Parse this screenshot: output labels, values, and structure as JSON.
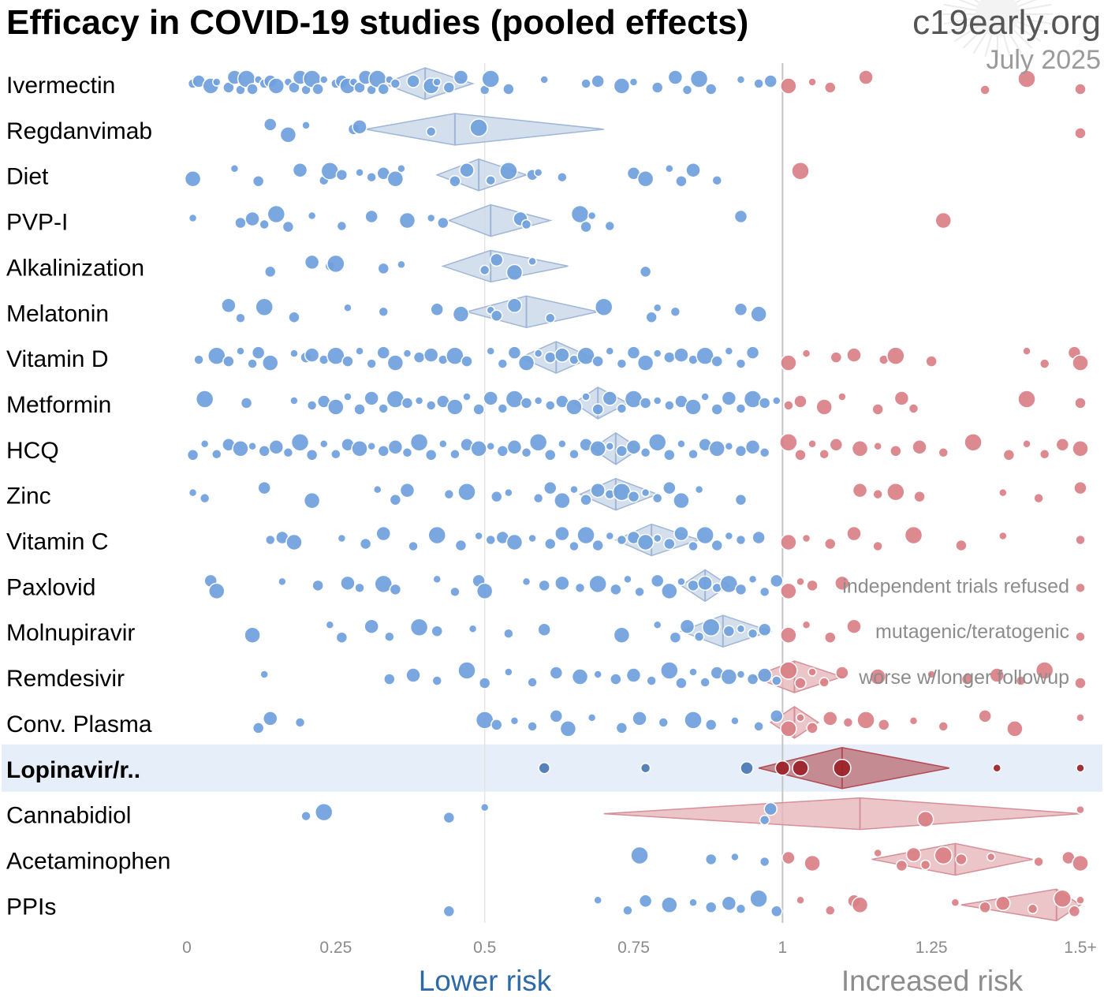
{
  "title": "Efficacy in COVID-19 studies (pooled effects)",
  "brand": "c19early.org",
  "date": "July 2025",
  "colors": {
    "lower": "#6f9fdc",
    "higher": "#d97f86",
    "pool_lower": "#c9d7ea",
    "pool_higher": "#e7b6bc",
    "highlight_bg": "#e6eef9",
    "highlight_lower": "#4a78b3",
    "highlight_higher": "#9b2128",
    "lower_label": "#2e6aa6",
    "higher_label": "#8c8c8c"
  },
  "chart_data": {
    "type": "scatter",
    "xlim": [
      0,
      1.5
    ],
    "x_ticks": [
      {
        "value": 0,
        "label": "0"
      },
      {
        "value": 0.25,
        "label": "0.25"
      },
      {
        "value": 0.5,
        "label": "0.5"
      },
      {
        "value": 0.75,
        "label": "0.75"
      },
      {
        "value": 1,
        "label": "1"
      },
      {
        "value": 1.25,
        "label": "1.25"
      },
      {
        "value": 1.5,
        "label": "1.5+"
      }
    ],
    "x_direction_labels": {
      "lower": "Lower risk",
      "higher": "Increased risk"
    },
    "highlight": "Lopinavir/r..",
    "rows": [
      {
        "name": "Ivermectin",
        "pooled": {
          "est": 0.4,
          "lo": 0.33,
          "hi": 0.48
        },
        "points": [
          0.01,
          0.02,
          0.04,
          0.05,
          0.07,
          0.08,
          0.09,
          0.1,
          0.11,
          0.12,
          0.13,
          0.14,
          0.15,
          0.17,
          0.18,
          0.19,
          0.2,
          0.21,
          0.22,
          0.23,
          0.25,
          0.26,
          0.27,
          0.28,
          0.29,
          0.3,
          0.31,
          0.32,
          0.33,
          0.34,
          0.35,
          0.38,
          0.41,
          0.42,
          0.44,
          0.46,
          0.5,
          0.51,
          0.54,
          0.6,
          0.67,
          0.69,
          0.73,
          0.75,
          0.79,
          0.82,
          0.84,
          0.86,
          0.88,
          0.93,
          0.96,
          0.98,
          1.01,
          1.05,
          1.08,
          1.14,
          1.34,
          1.41,
          1.5
        ],
        "note": ""
      },
      {
        "name": "Regdanvimab",
        "pooled": {
          "est": 0.45,
          "lo": 0.3,
          "hi": 0.7
        },
        "points": [
          0.14,
          0.17,
          0.2,
          0.28,
          0.29,
          0.41,
          0.49,
          1.5
        ],
        "note": ""
      },
      {
        "name": "Diet",
        "pooled": {
          "est": 0.49,
          "lo": 0.42,
          "hi": 0.57
        },
        "points": [
          0.01,
          0.08,
          0.12,
          0.19,
          0.23,
          0.24,
          0.26,
          0.29,
          0.31,
          0.33,
          0.35,
          0.36,
          0.45,
          0.47,
          0.51,
          0.54,
          0.58,
          0.59,
          0.63,
          0.75,
          0.77,
          0.81,
          0.83,
          0.85,
          0.89,
          1.03
        ],
        "note": ""
      },
      {
        "name": "PVP-I",
        "pooled": {
          "est": 0.51,
          "lo": 0.44,
          "hi": 0.61
        },
        "points": [
          0.01,
          0.09,
          0.11,
          0.13,
          0.15,
          0.17,
          0.21,
          0.26,
          0.31,
          0.37,
          0.41,
          0.43,
          0.56,
          0.57,
          0.66,
          0.67,
          0.68,
          0.71,
          0.93,
          1.27
        ],
        "note": ""
      },
      {
        "name": "Alkalinization",
        "pooled": {
          "est": 0.51,
          "lo": 0.43,
          "hi": 0.64
        },
        "points": [
          0.14,
          0.21,
          0.24,
          0.25,
          0.33,
          0.36,
          0.5,
          0.52,
          0.55,
          0.58,
          0.77
        ],
        "note": ""
      },
      {
        "name": "Melatonin",
        "pooled": {
          "est": 0.57,
          "lo": 0.47,
          "hi": 0.69
        },
        "points": [
          0.07,
          0.09,
          0.13,
          0.18,
          0.27,
          0.33,
          0.42,
          0.46,
          0.51,
          0.52,
          0.55,
          0.61,
          0.7,
          0.78,
          0.79,
          0.82,
          0.93,
          0.96
        ],
        "note": ""
      },
      {
        "name": "Vitamin D",
        "pooled": {
          "est": 0.62,
          "lo": 0.56,
          "hi": 0.68
        },
        "points": [
          0.02,
          0.05,
          0.07,
          0.09,
          0.11,
          0.12,
          0.14,
          0.18,
          0.2,
          0.21,
          0.23,
          0.25,
          0.27,
          0.29,
          0.31,
          0.33,
          0.35,
          0.37,
          0.39,
          0.41,
          0.43,
          0.45,
          0.47,
          0.51,
          0.53,
          0.55,
          0.57,
          0.59,
          0.61,
          0.63,
          0.65,
          0.67,
          0.69,
          0.71,
          0.73,
          0.75,
          0.77,
          0.79,
          0.81,
          0.83,
          0.85,
          0.87,
          0.89,
          0.91,
          0.93,
          0.95,
          1.01,
          1.04,
          1.09,
          1.12,
          1.17,
          1.19,
          1.25,
          1.41,
          1.44,
          1.49,
          1.5
        ],
        "note": ""
      },
      {
        "name": "Metformin",
        "pooled": {
          "est": 0.69,
          "lo": 0.65,
          "hi": 0.74
        },
        "points": [
          0.03,
          0.1,
          0.18,
          0.21,
          0.23,
          0.25,
          0.27,
          0.29,
          0.31,
          0.33,
          0.35,
          0.37,
          0.39,
          0.41,
          0.43,
          0.45,
          0.47,
          0.49,
          0.51,
          0.53,
          0.55,
          0.57,
          0.59,
          0.61,
          0.63,
          0.65,
          0.67,
          0.69,
          0.71,
          0.73,
          0.75,
          0.77,
          0.79,
          0.81,
          0.83,
          0.85,
          0.87,
          0.89,
          0.91,
          0.93,
          0.95,
          0.97,
          0.99,
          1.01,
          1.03,
          1.07,
          1.1,
          1.16,
          1.2,
          1.22,
          1.41,
          1.5
        ],
        "note": ""
      },
      {
        "name": "HCQ",
        "pooled": {
          "est": 0.72,
          "lo": 0.68,
          "hi": 0.76
        },
        "points": [
          0.01,
          0.03,
          0.05,
          0.07,
          0.09,
          0.11,
          0.13,
          0.15,
          0.17,
          0.19,
          0.21,
          0.23,
          0.25,
          0.27,
          0.29,
          0.31,
          0.33,
          0.35,
          0.37,
          0.39,
          0.41,
          0.43,
          0.45,
          0.47,
          0.49,
          0.51,
          0.53,
          0.55,
          0.57,
          0.59,
          0.61,
          0.63,
          0.65,
          0.67,
          0.69,
          0.71,
          0.73,
          0.75,
          0.77,
          0.79,
          0.81,
          0.83,
          0.85,
          0.87,
          0.89,
          0.91,
          0.93,
          0.95,
          0.97,
          1.01,
          1.03,
          1.05,
          1.07,
          1.09,
          1.13,
          1.16,
          1.19,
          1.23,
          1.27,
          1.32,
          1.38,
          1.41,
          1.44,
          1.47,
          1.5
        ],
        "note": ""
      },
      {
        "name": "Zinc",
        "pooled": {
          "est": 0.72,
          "lo": 0.66,
          "hi": 0.79
        },
        "points": [
          0.01,
          0.03,
          0.13,
          0.21,
          0.32,
          0.35,
          0.37,
          0.44,
          0.47,
          0.52,
          0.54,
          0.59,
          0.61,
          0.63,
          0.65,
          0.67,
          0.69,
          0.71,
          0.73,
          0.75,
          0.77,
          0.79,
          0.81,
          0.83,
          0.86,
          0.93,
          1.13,
          1.16,
          1.19,
          1.23,
          1.37,
          1.43,
          1.5
        ],
        "note": ""
      },
      {
        "name": "Vitamin C",
        "pooled": {
          "est": 0.78,
          "lo": 0.72,
          "hi": 0.86
        },
        "points": [
          0.14,
          0.16,
          0.18,
          0.26,
          0.3,
          0.33,
          0.38,
          0.42,
          0.46,
          0.49,
          0.51,
          0.53,
          0.55,
          0.58,
          0.61,
          0.63,
          0.65,
          0.67,
          0.69,
          0.71,
          0.73,
          0.75,
          0.77,
          0.79,
          0.81,
          0.83,
          0.85,
          0.87,
          0.89,
          0.91,
          0.93,
          0.96,
          1.01,
          1.04,
          1.08,
          1.12,
          1.16,
          1.22,
          1.3,
          1.37,
          1.5
        ],
        "note": ""
      },
      {
        "name": "Paxlovid",
        "pooled": {
          "est": 0.87,
          "lo": 0.83,
          "hi": 0.91
        },
        "points": [
          0.04,
          0.05,
          0.16,
          0.22,
          0.27,
          0.29,
          0.33,
          0.35,
          0.42,
          0.45,
          0.49,
          0.5,
          0.57,
          0.6,
          0.63,
          0.66,
          0.69,
          0.72,
          0.74,
          0.76,
          0.79,
          0.81,
          0.83,
          0.85,
          0.87,
          0.89,
          0.91,
          0.93,
          0.95,
          0.97,
          0.99,
          1.01,
          1.03,
          1.05,
          1.1,
          1.5
        ],
        "note": "independent trials refused"
      },
      {
        "name": "Molnupiravir",
        "pooled": {
          "est": 0.9,
          "lo": 0.83,
          "hi": 0.98
        },
        "points": [
          0.11,
          0.24,
          0.26,
          0.31,
          0.34,
          0.39,
          0.42,
          0.48,
          0.54,
          0.6,
          0.73,
          0.79,
          0.82,
          0.84,
          0.86,
          0.88,
          0.91,
          0.93,
          0.95,
          0.97,
          1.01,
          1.04,
          1.08,
          1.12,
          1.5
        ],
        "note": "mutagenic/teratogenic"
      },
      {
        "name": "Remdesivir",
        "pooled": {
          "est": 1.02,
          "lo": 0.95,
          "hi": 1.1
        },
        "points": [
          0.13,
          0.34,
          0.38,
          0.42,
          0.47,
          0.5,
          0.54,
          0.58,
          0.62,
          0.66,
          0.69,
          0.72,
          0.75,
          0.78,
          0.81,
          0.83,
          0.85,
          0.87,
          0.89,
          0.91,
          0.93,
          0.95,
          0.97,
          0.99,
          1.01,
          1.03,
          1.05,
          1.07,
          1.1,
          1.16,
          1.25,
          1.31,
          1.36,
          1.4,
          1.44,
          1.5
        ],
        "note": "worse w/longer followup"
      },
      {
        "name": "Conv. Plasma",
        "pooled": {
          "est": 1.02,
          "lo": 0.98,
          "hi": 1.06
        },
        "points": [
          0.12,
          0.14,
          0.19,
          0.5,
          0.52,
          0.55,
          0.58,
          0.62,
          0.64,
          0.68,
          0.73,
          0.76,
          0.8,
          0.85,
          0.88,
          0.92,
          0.96,
          0.99,
          1.01,
          1.03,
          1.05,
          1.08,
          1.11,
          1.14,
          1.17,
          1.22,
          1.27,
          1.34,
          1.39,
          1.5
        ],
        "note": ""
      },
      {
        "name": "Lopinavir/r..",
        "pooled": {
          "est": 1.1,
          "lo": 0.96,
          "hi": 1.28
        },
        "points": [
          0.6,
          0.77,
          0.94,
          1.0,
          1.03,
          1.1,
          1.36,
          1.5
        ],
        "note": ""
      },
      {
        "name": "Cannabidiol",
        "pooled": {
          "est": 1.13,
          "lo": 0.7,
          "hi": 1.5
        },
        "points": [
          0.2,
          0.23,
          0.44,
          0.5,
          0.97,
          0.98,
          1.24,
          1.5
        ],
        "note": ""
      },
      {
        "name": "Acetaminophen",
        "pooled": {
          "est": 1.29,
          "lo": 1.15,
          "hi": 1.42
        },
        "points": [
          0.76,
          0.88,
          0.92,
          0.97,
          1.01,
          1.05,
          1.16,
          1.2,
          1.22,
          1.24,
          1.27,
          1.3,
          1.35,
          1.43,
          1.48,
          1.5
        ],
        "note": ""
      },
      {
        "name": "PPIs",
        "pooled": {
          "est": 1.46,
          "lo": 1.3,
          "hi": 1.5
        },
        "points": [
          0.44,
          0.69,
          0.74,
          0.77,
          0.81,
          0.85,
          0.88,
          0.91,
          0.93,
          0.96,
          0.99,
          1.03,
          1.08,
          1.12,
          1.13,
          1.29,
          1.34,
          1.37,
          1.42,
          1.47,
          1.49,
          1.5
        ],
        "note": ""
      }
    ]
  }
}
